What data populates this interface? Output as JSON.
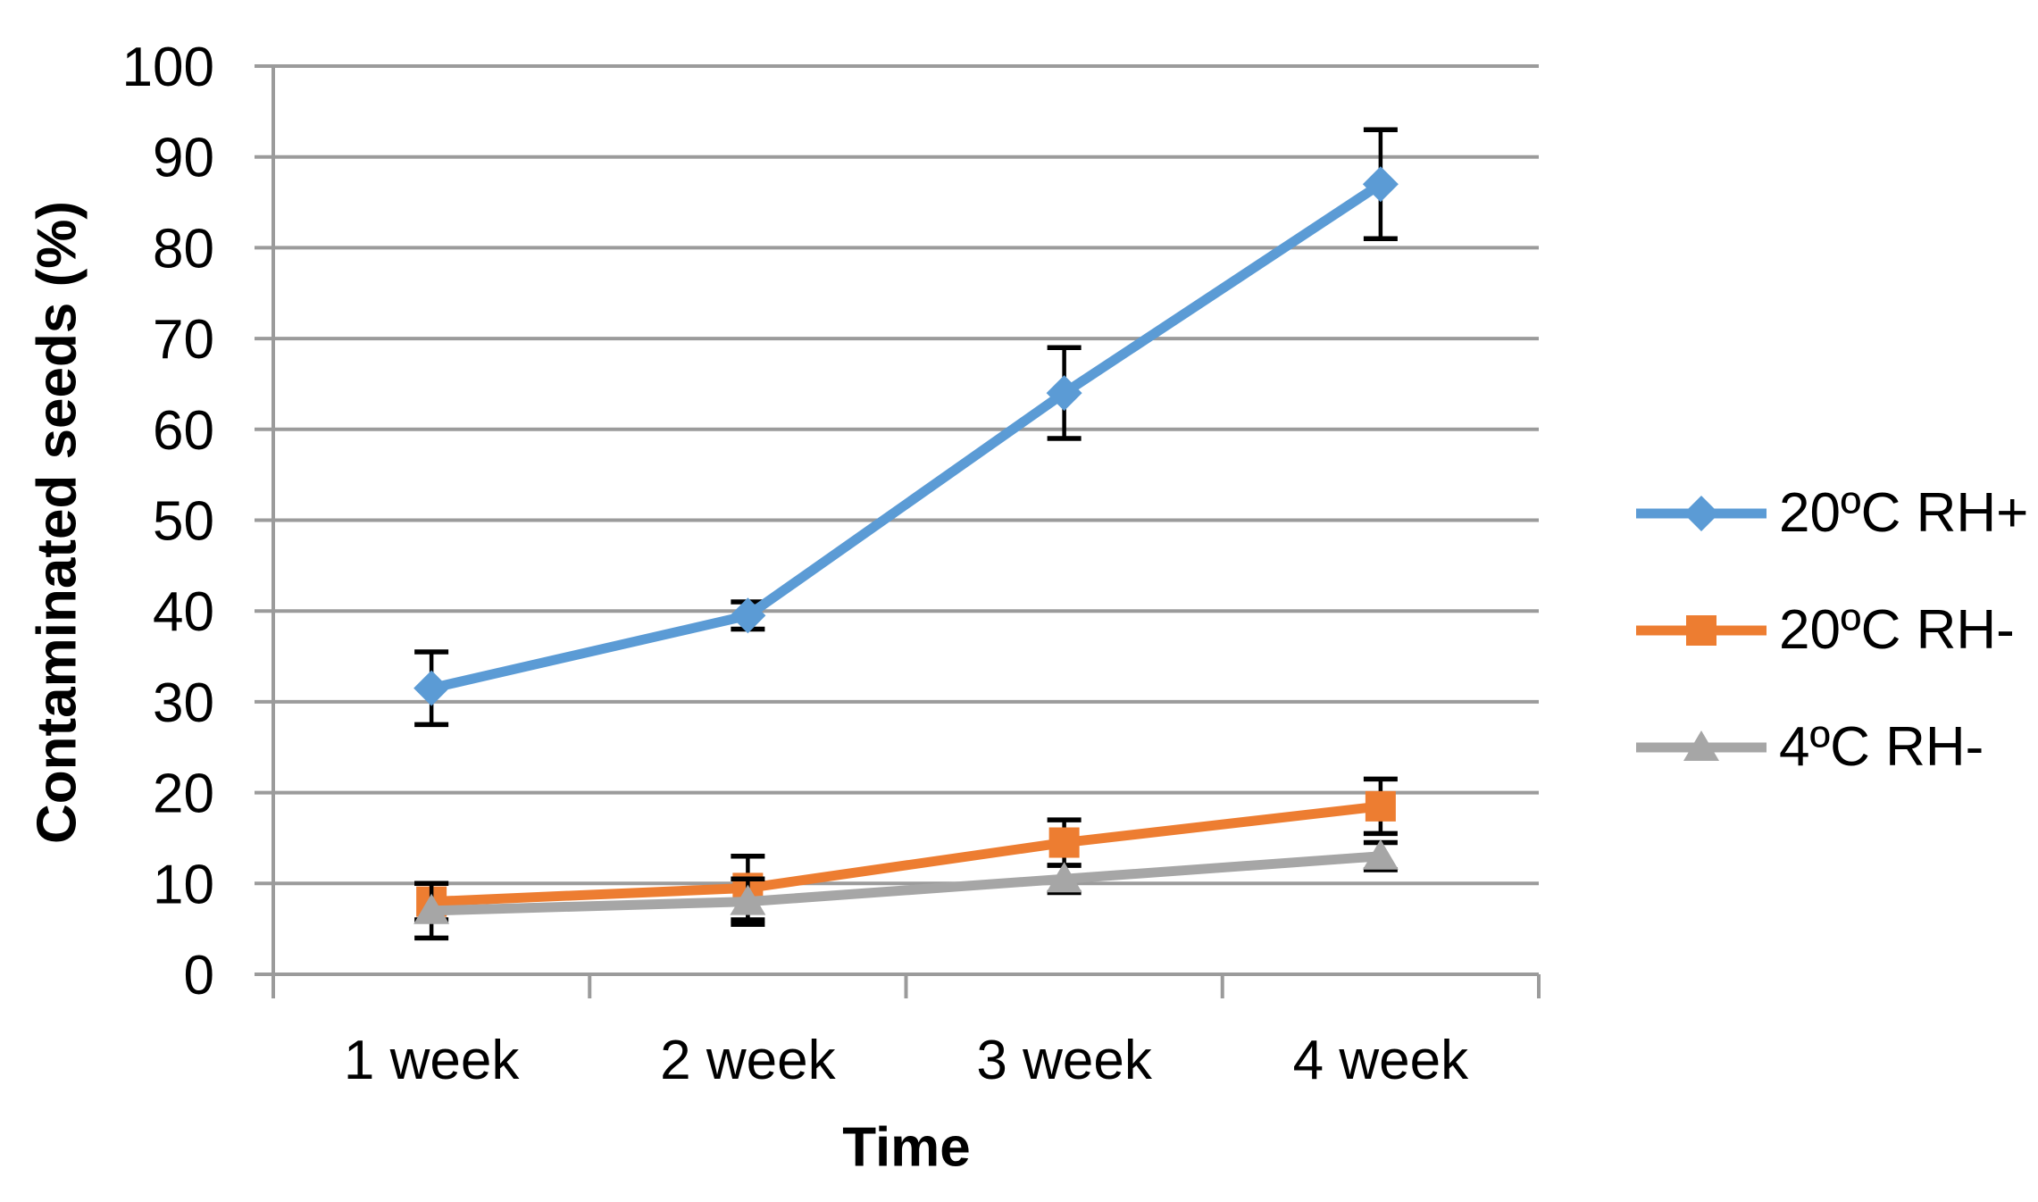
{
  "chart_data": {
    "type": "line",
    "title": "",
    "xlabel": "Time",
    "ylabel": "Contaminated seeds (%)",
    "categories": [
      "1 week",
      "2 week",
      "3 week",
      "4 week"
    ],
    "y_ticks": [
      0,
      10,
      20,
      30,
      40,
      50,
      60,
      70,
      80,
      90,
      100
    ],
    "ylim": [
      0,
      100
    ],
    "grid": "horizontal",
    "legend_position": "right",
    "series": [
      {
        "name": "20ºC RH+",
        "color": "#5B9BD5",
        "marker": "diamond",
        "values": [
          31.5,
          39.5,
          64,
          87
        ],
        "error": [
          4,
          1.5,
          5,
          6
        ]
      },
      {
        "name": "20ºC RH-",
        "color": "#ED7D31",
        "marker": "square",
        "values": [
          8,
          9.5,
          14.5,
          18.5
        ],
        "error": [
          2,
          3.5,
          2.5,
          3
        ]
      },
      {
        "name": "4ºC RH-",
        "color": "#A6A6A6",
        "marker": "triangle",
        "values": [
          7,
          8,
          10.5,
          13
        ],
        "error": [
          3,
          2.5,
          1.5,
          1.5
        ]
      }
    ],
    "error_bar_color": "#000000",
    "axis_color": "#9B9B9B",
    "gridline_color": "#9B9B9B",
    "text_color": "#000000"
  }
}
